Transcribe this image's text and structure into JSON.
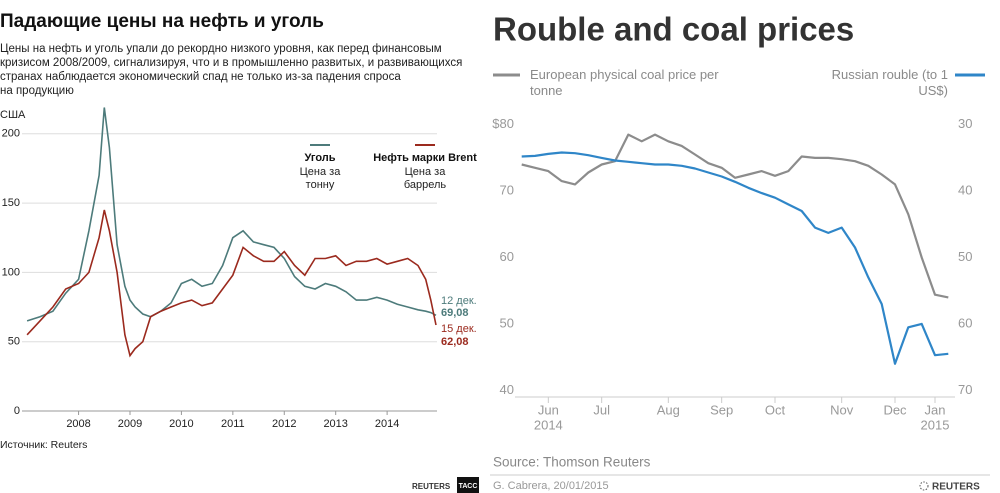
{
  "chart_data": [
    {
      "type": "line",
      "title": "Падающие цены на нефть и уголь",
      "subtitle": [
        "Цены на нефть и уголь упали до рекордно низкого уровня, как перед финансовым",
        "кризисом 2008/2009, сигнализируя, что и в промышленно развитых, и развивающихся",
        "странах наблюдается экономический спад не только из-за падения спроса",
        "на продукцию"
      ],
      "y_label": "США",
      "x": [
        2007.0,
        2007.25,
        2007.5,
        2007.75,
        2008.0,
        2008.2,
        2008.4,
        2008.5,
        2008.6,
        2008.75,
        2008.9,
        2009.0,
        2009.1,
        2009.25,
        2009.4,
        2009.6,
        2009.8,
        2010.0,
        2010.2,
        2010.4,
        2010.6,
        2010.8,
        2011.0,
        2011.2,
        2011.4,
        2011.6,
        2011.8,
        2012.0,
        2012.2,
        2012.4,
        2012.6,
        2012.8,
        2013.0,
        2013.2,
        2013.4,
        2013.6,
        2013.8,
        2014.0,
        2014.2,
        2014.4,
        2014.6,
        2014.75,
        2014.85,
        2014.95
      ],
      "xlim": [
        2006.9,
        2014.97
      ],
      "xticks": [
        2008,
        2009,
        2010,
        2011,
        2012,
        2013,
        2014
      ],
      "ylim": [
        0,
        215
      ],
      "yticks": [
        0,
        50,
        100,
        150,
        200
      ],
      "grid": true,
      "legend": "top-right",
      "series": [
        {
          "name": "Уголь",
          "description": [
            "Цена за",
            "тонну"
          ],
          "color": "#4d7b7b",
          "values": [
            65,
            68,
            72,
            85,
            95,
            130,
            170,
            219,
            190,
            120,
            90,
            80,
            75,
            70,
            68,
            72,
            78,
            92,
            95,
            90,
            92,
            105,
            125,
            130,
            122,
            120,
            118,
            110,
            97,
            90,
            88,
            92,
            90,
            86,
            80,
            80,
            82,
            80,
            77,
            75,
            73,
            72,
            71,
            69.08
          ]
        },
        {
          "name": "Нефть марки Brent",
          "description": [
            "Цена за",
            "баррель"
          ],
          "color": "#9b2a1e",
          "values": [
            55,
            65,
            75,
            88,
            92,
            100,
            125,
            145,
            130,
            100,
            55,
            40,
            45,
            50,
            68,
            72,
            75,
            78,
            80,
            76,
            78,
            88,
            98,
            118,
            112,
            108,
            108,
            115,
            105,
            98,
            110,
            110,
            112,
            105,
            108,
            108,
            110,
            106,
            108,
            110,
            105,
            95,
            80,
            62.08
          ]
        }
      ],
      "annotations": [
        {
          "date": "12 дек.",
          "value": 69.08,
          "label": "69,08"
        },
        {
          "date": "15 дек.",
          "value": 62.08,
          "label": "62,08"
        }
      ],
      "source": "Источник: Reuters",
      "logos": [
        "REUTERS",
        "ТАСС"
      ]
    },
    {
      "type": "line",
      "title": "Rouble and coal prices",
      "categories": [
        null,
        null,
        "Jun",
        null,
        null,
        null,
        "Jul",
        null,
        null,
        null,
        null,
        "Aug",
        null,
        null,
        null,
        "Sep",
        null,
        null,
        null,
        "Oct",
        null,
        null,
        null,
        null,
        "Nov",
        null,
        null,
        null,
        "Dec",
        null,
        null,
        "Jan",
        null
      ],
      "category_years": [
        null,
        null,
        "2014",
        null,
        null,
        null,
        null,
        null,
        null,
        null,
        null,
        null,
        null,
        null,
        null,
        null,
        null,
        null,
        null,
        null,
        null,
        null,
        null,
        null,
        null,
        null,
        null,
        null,
        null,
        null,
        null,
        "2015",
        null
      ],
      "ylim": [
        39,
        81
      ],
      "yticks": [
        40,
        50,
        60,
        70,
        {
          "value": 80,
          "label": "$80"
        }
      ],
      "y2lim": [
        71,
        29
      ],
      "y2ticks": [
        30,
        40,
        50,
        60,
        70
      ],
      "grid": false,
      "legend": "top",
      "series": [
        {
          "name": "European physical coal price per tonne",
          "color": "#8c8c8c",
          "values": [
            74,
            73.5,
            73,
            71.5,
            71,
            72.8,
            74,
            74.5,
            78.5,
            77.5,
            78.5,
            77.5,
            76.8,
            75.5,
            74.2,
            73.5,
            72,
            72.5,
            73,
            72.3,
            73,
            75.2,
            75,
            75,
            74.8,
            74.5,
            73.8,
            72.5,
            71,
            66.5,
            60,
            54.4,
            54
          ]
        },
        {
          "name": "Russian rouble (to 1 US$)",
          "color": "#2f86c8",
          "axis": "y2",
          "values": [
            34.8,
            34.7,
            34.4,
            34.2,
            34.3,
            34.6,
            35,
            35.4,
            35.6,
            35.8,
            36,
            36,
            36.2,
            36.6,
            37.2,
            37.8,
            38.6,
            39.5,
            40.3,
            41,
            42,
            43,
            45.5,
            46.3,
            45.5,
            48.5,
            53,
            57,
            66,
            60.5,
            60,
            64.7,
            64.5
          ]
        }
      ],
      "source": "Source: Thomson Reuters",
      "credit": "G. Cabrera, 20/01/2015",
      "logo": "REUTERS"
    }
  ]
}
